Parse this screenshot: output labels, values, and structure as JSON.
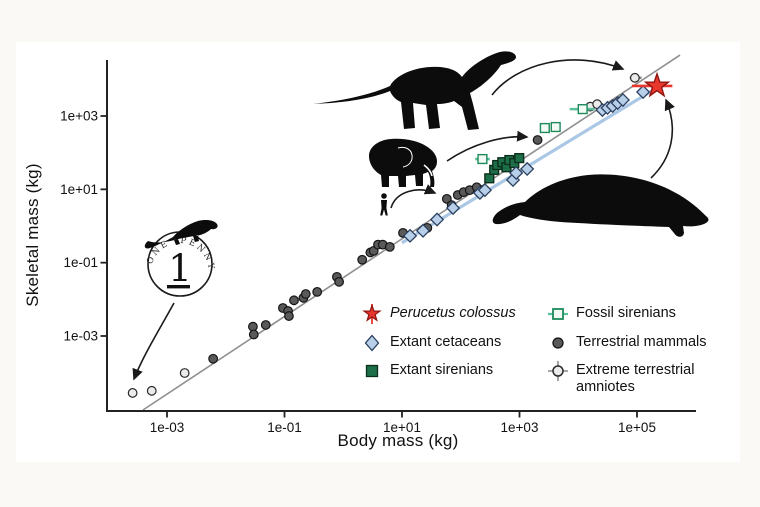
{
  "figure": {
    "background": "#faf9f5",
    "panel_background": "#ffffff"
  },
  "chart_data": {
    "type": "scatter",
    "title": "",
    "xlabel": "Body mass (kg)",
    "ylabel": "Skeletal mass (kg)",
    "x_scale": "log",
    "y_scale": "log",
    "grid": false,
    "x_axis": {
      "range": [
        9.5e-05,
        980000
      ],
      "ticks": [
        {
          "label": "1e-03",
          "value": 0.001
        },
        {
          "label": "1e-01",
          "value": 0.1
        },
        {
          "label": "1e+01",
          "value": 10
        },
        {
          "label": "1e+03",
          "value": 1000
        },
        {
          "label": "1e+05",
          "value": 100000
        }
      ]
    },
    "y_axis": {
      "range": [
        9e-06,
        34000
      ],
      "ticks": [
        {
          "label": "1e+03",
          "value": 1000
        },
        {
          "label": "1e+01",
          "value": 10
        },
        {
          "label": "1e-01",
          "value": 0.1
        },
        {
          "label": "1e-03",
          "value": 0.001
        }
      ]
    },
    "lines": [
      {
        "id": "terrestrial-regression",
        "color": "#8f8f8f",
        "width": 1.6,
        "from": [
          0.00039,
          9.6e-06
        ],
        "to": [
          540000,
          46000
        ]
      },
      {
        "id": "aquatic-regression",
        "color": "#aac7e6",
        "width": 3.2,
        "from": [
          10,
          0.35
        ],
        "to": [
          230000,
          6200
        ]
      }
    ],
    "series": [
      {
        "id": "terrestrial-mammals",
        "name": "Terrestrial mammals",
        "marker": "circle",
        "fill": "#595959",
        "stroke": "#151515",
        "points": [
          [
            0.0061,
            0.00024
          ],
          [
            0.029,
            0.0018
          ],
          [
            0.03,
            0.0011
          ],
          [
            0.048,
            0.002
          ],
          [
            0.094,
            0.0058
          ],
          [
            0.115,
            0.0048
          ],
          [
            0.119,
            0.0035
          ],
          [
            0.145,
            0.0094
          ],
          [
            0.21,
            0.011
          ],
          [
            0.23,
            0.014
          ],
          [
            0.36,
            0.016
          ],
          [
            0.78,
            0.041
          ],
          [
            0.85,
            0.03
          ],
          [
            2.1,
            0.12
          ],
          [
            2.9,
            0.19
          ],
          [
            3.3,
            0.21
          ],
          [
            3.9,
            0.31
          ],
          [
            4.7,
            0.31
          ],
          [
            6.2,
            0.27
          ],
          [
            10.4,
            0.65
          ],
          [
            27,
            0.89
          ],
          [
            58,
            5.5
          ],
          [
            70,
            3.7
          ],
          [
            89,
            7
          ],
          [
            112,
            8.4
          ],
          [
            142,
            9.5
          ],
          [
            187,
            11.4
          ],
          [
            235,
            9.5
          ],
          [
            2030,
            222
          ]
        ]
      },
      {
        "id": "extreme-terrestrial-amniotes",
        "name": "Extreme terrestrial amniotes",
        "marker": "circle",
        "fill": "#ebebeb",
        "stroke": "#2a2a2a",
        "error_color": "#8a8a8a",
        "points": [
          [
            0.00026,
            2.8e-05
          ],
          [
            0.00055,
            3.2e-05
          ],
          [
            0.002,
            9.8e-05
          ],
          [
            16000,
            1800
          ],
          [
            21000,
            2100
          ],
          {
            "x": 92000,
            "y": 11000,
            "xlo": 75000,
            "xhi": 120000
          }
        ]
      },
      {
        "id": "fossil-sirenians",
        "name": "Fossil sirenians",
        "marker": "square",
        "fill": "#f2faf6",
        "stroke": "#1d8a5a",
        "error_color": "#57c096",
        "points": [
          {
            "x": 234,
            "y": 67,
            "xlo": 176,
            "xhi": 312
          },
          {
            "x": 2700,
            "y": 470
          },
          {
            "x": 4130,
            "y": 500
          },
          {
            "x": 11900,
            "y": 1540,
            "xlo": 7150,
            "xhi": 19000
          }
        ]
      },
      {
        "id": "extant-sirenians",
        "name": "Extant sirenians",
        "marker": "square",
        "fill": "#1d6f49",
        "stroke": "#0e2e1c",
        "points": [
          [
            306,
            20
          ],
          [
            371,
            34
          ],
          [
            417,
            46
          ],
          [
            510,
            55
          ],
          [
            600,
            40
          ],
          [
            672,
            63
          ],
          [
            815,
            52
          ],
          [
            990,
            71
          ]
        ]
      },
      {
        "id": "extant-cetaceans",
        "name": "Extant cetaceans",
        "marker": "diamond",
        "fill": "#b8cfe9",
        "stroke": "#2b3f5e",
        "points": [
          [
            13.7,
            0.54
          ],
          [
            22.8,
            0.74
          ],
          [
            39.5,
            1.5
          ],
          [
            74,
            3.1
          ],
          [
            212,
            8
          ],
          [
            258,
            9.5
          ],
          [
            775,
            18
          ],
          [
            877,
            28
          ],
          [
            1350,
            36
          ],
          [
            25800,
            1460
          ],
          [
            31500,
            1660
          ],
          [
            38500,
            1880
          ],
          [
            47000,
            2260
          ],
          [
            57500,
            2730
          ],
          [
            127000,
            4500
          ]
        ]
      },
      {
        "id": "perucetus-colossus",
        "name": "Perucetus colossus",
        "marker": "star",
        "fill": "#e8382e",
        "stroke": "#8f1511",
        "error_color": "#e8382e",
        "points": [
          {
            "x": 219000,
            "y": 6600,
            "xlo": 82000,
            "xhi": 400000
          }
        ]
      }
    ]
  },
  "legend": {
    "items": [
      {
        "label": "Perucetus colossus",
        "marker": "star",
        "color": "#e8382e",
        "italic": true
      },
      {
        "label": "Extant cetaceans",
        "marker": "diamond",
        "color": "#b8cfe9"
      },
      {
        "label": "Extant sirenians",
        "marker": "square",
        "color": "#1d6f49"
      },
      {
        "label": "Fossil sirenians",
        "marker": "square-open",
        "color": "#1d8a5a"
      },
      {
        "label": "Terrestrial mammals",
        "marker": "circle",
        "color": "#595959"
      },
      {
        "label": "Extreme terrestrial amniotes",
        "marker": "circle-open",
        "color": "#ebebeb"
      }
    ]
  },
  "annotations": {
    "coin_text": "ONE PENNY",
    "coin_digit": "1",
    "silhouettes": [
      "lizard-on-penny",
      "sauropod",
      "elephant",
      "human",
      "perucetus-whale"
    ]
  }
}
